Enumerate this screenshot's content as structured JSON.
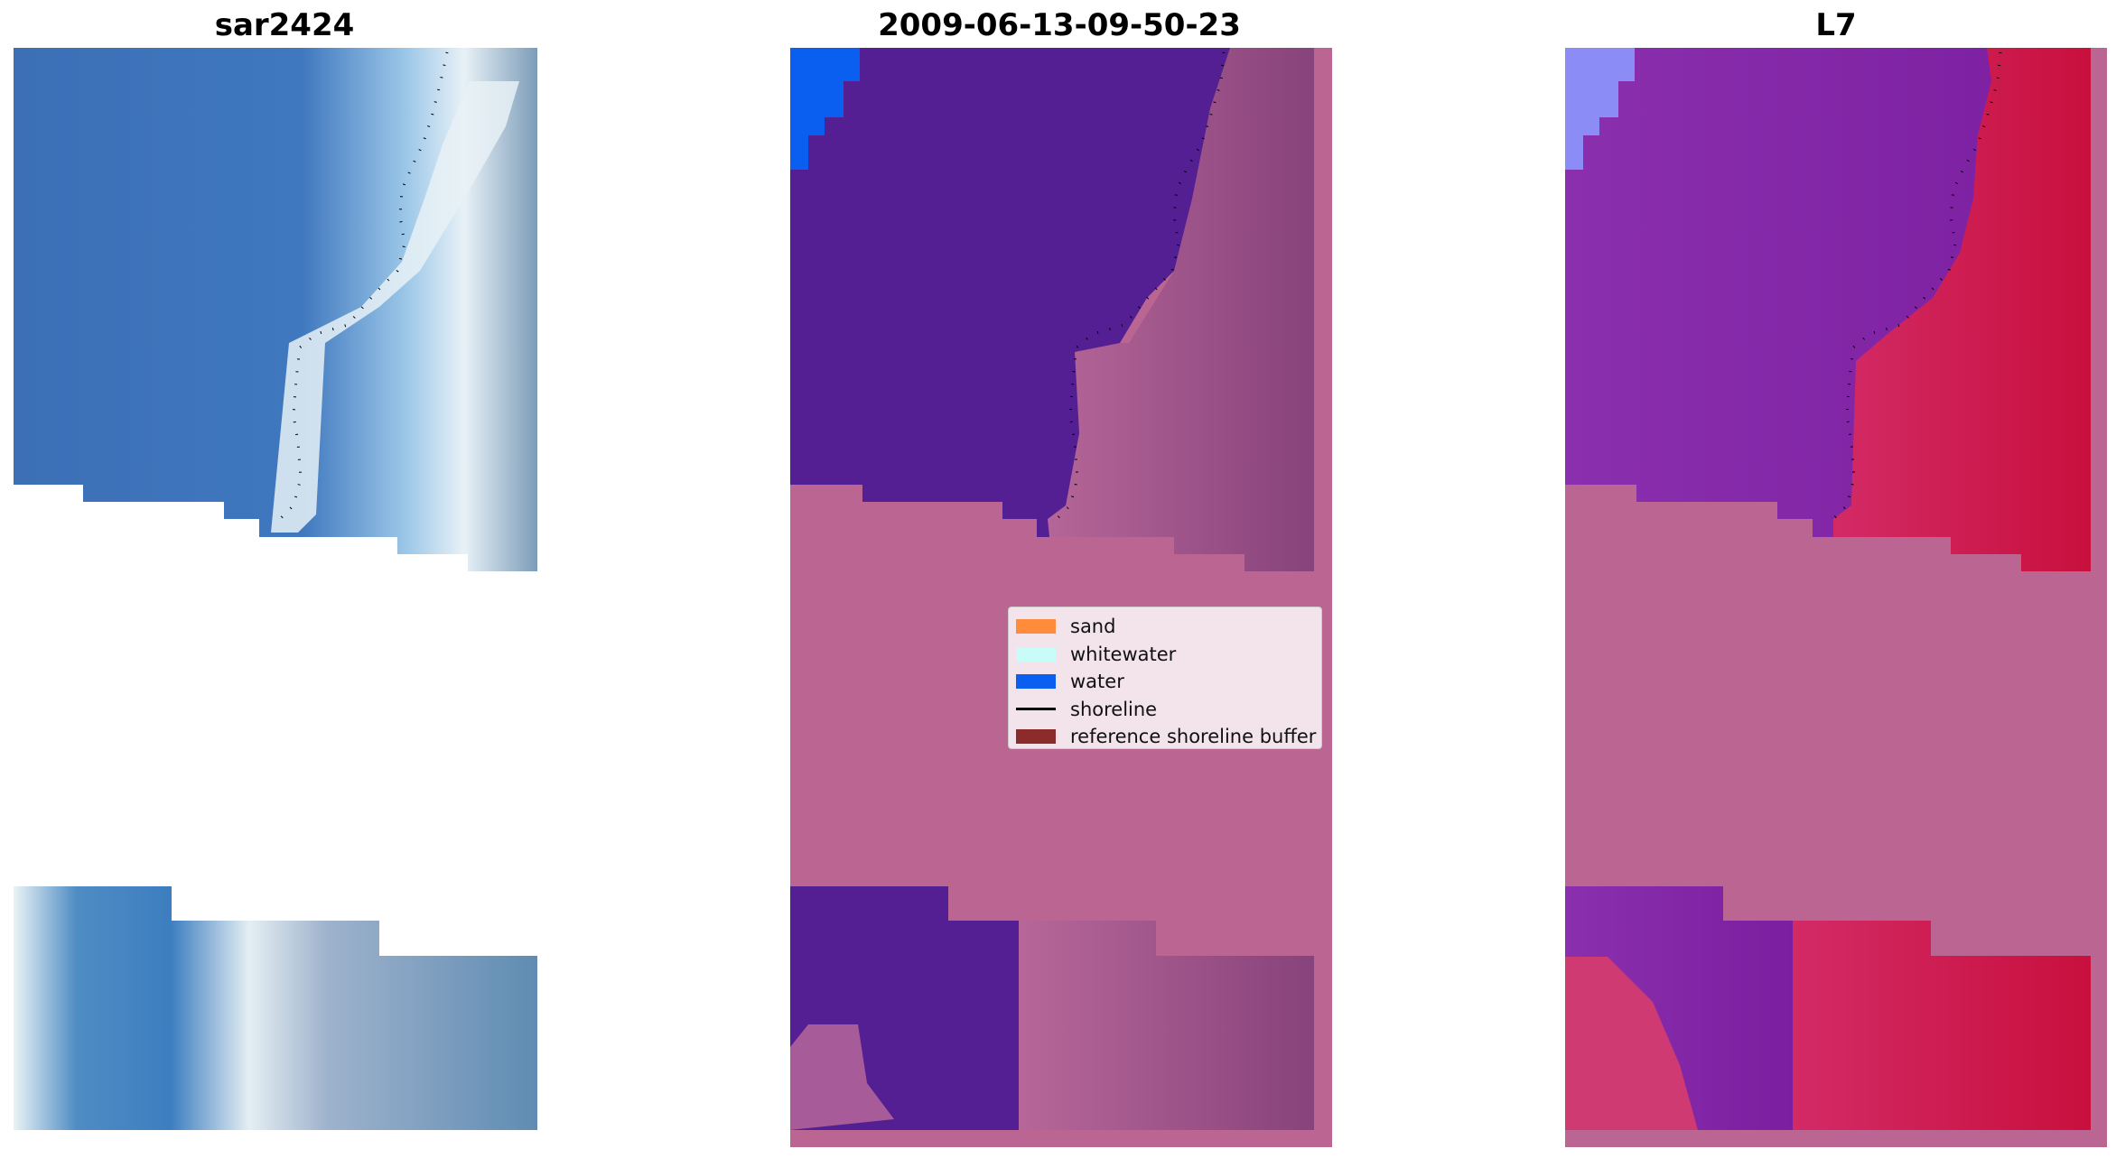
{
  "panels": [
    {
      "id": "rgb",
      "title": "sar2424"
    },
    {
      "id": "classified",
      "title": "2009-06-13-09-50-23"
    },
    {
      "id": "mndwi",
      "title": "L7"
    }
  ],
  "legend": {
    "items": [
      {
        "label": "sand",
        "kind": "patch",
        "color": "#ff8c3a"
      },
      {
        "label": "whitewater",
        "kind": "patch",
        "color": "#c9fbf8"
      },
      {
        "label": "water",
        "kind": "patch",
        "color": "#0a5ef0"
      },
      {
        "label": "shoreline",
        "kind": "line",
        "color": "#000000"
      },
      {
        "label": "reference shoreline buffer",
        "kind": "patch",
        "color": "#8b2b2b"
      }
    ]
  },
  "colors": {
    "buffer_overlay": "#bb6593",
    "water_class": "#531f93",
    "water_class_light": "#0a5ef0",
    "rgb_water": "#3d73b8",
    "rgb_whitewater": "#e6f0f6",
    "rgb_land": "#6f93b3",
    "mndwi_water": "#7a2aa6",
    "mndwi_land": "#c7134e"
  }
}
